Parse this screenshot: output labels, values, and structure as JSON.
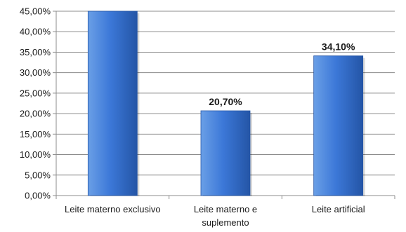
{
  "chart_data": {
    "type": "bar",
    "categories": [
      "Leite materno exclusivo",
      "Leite materno e suplemento",
      "Leite artificial"
    ],
    "category_label_lines": [
      [
        "Leite materno exclusivo"
      ],
      [
        "Leite materno e",
        "suplemento"
      ],
      [
        "Leite artificial"
      ]
    ],
    "values": [
      45.2,
      20.7,
      34.1
    ],
    "data_labels": [
      "",
      "20,70%",
      "34,10%"
    ],
    "ylim": [
      0,
      45
    ],
    "yticks": [
      0,
      5,
      10,
      15,
      20,
      25,
      30,
      35,
      40,
      45
    ],
    "ytick_labels": [
      "0,00%",
      "5,00%",
      "10,00%",
      "15,00%",
      "20,00%",
      "25,00%",
      "30,00%",
      "35,00%",
      "40,00%",
      "45,00%"
    ],
    "title": "",
    "xlabel": "",
    "ylabel": "",
    "grid": true,
    "legend": "none",
    "colors": {
      "bar_light": "#6a9fe6",
      "bar_main": "#3c78d8",
      "bar_dark": "#2455a6",
      "grid": "#8c8c8c",
      "axis": "#8c8c8c"
    }
  }
}
